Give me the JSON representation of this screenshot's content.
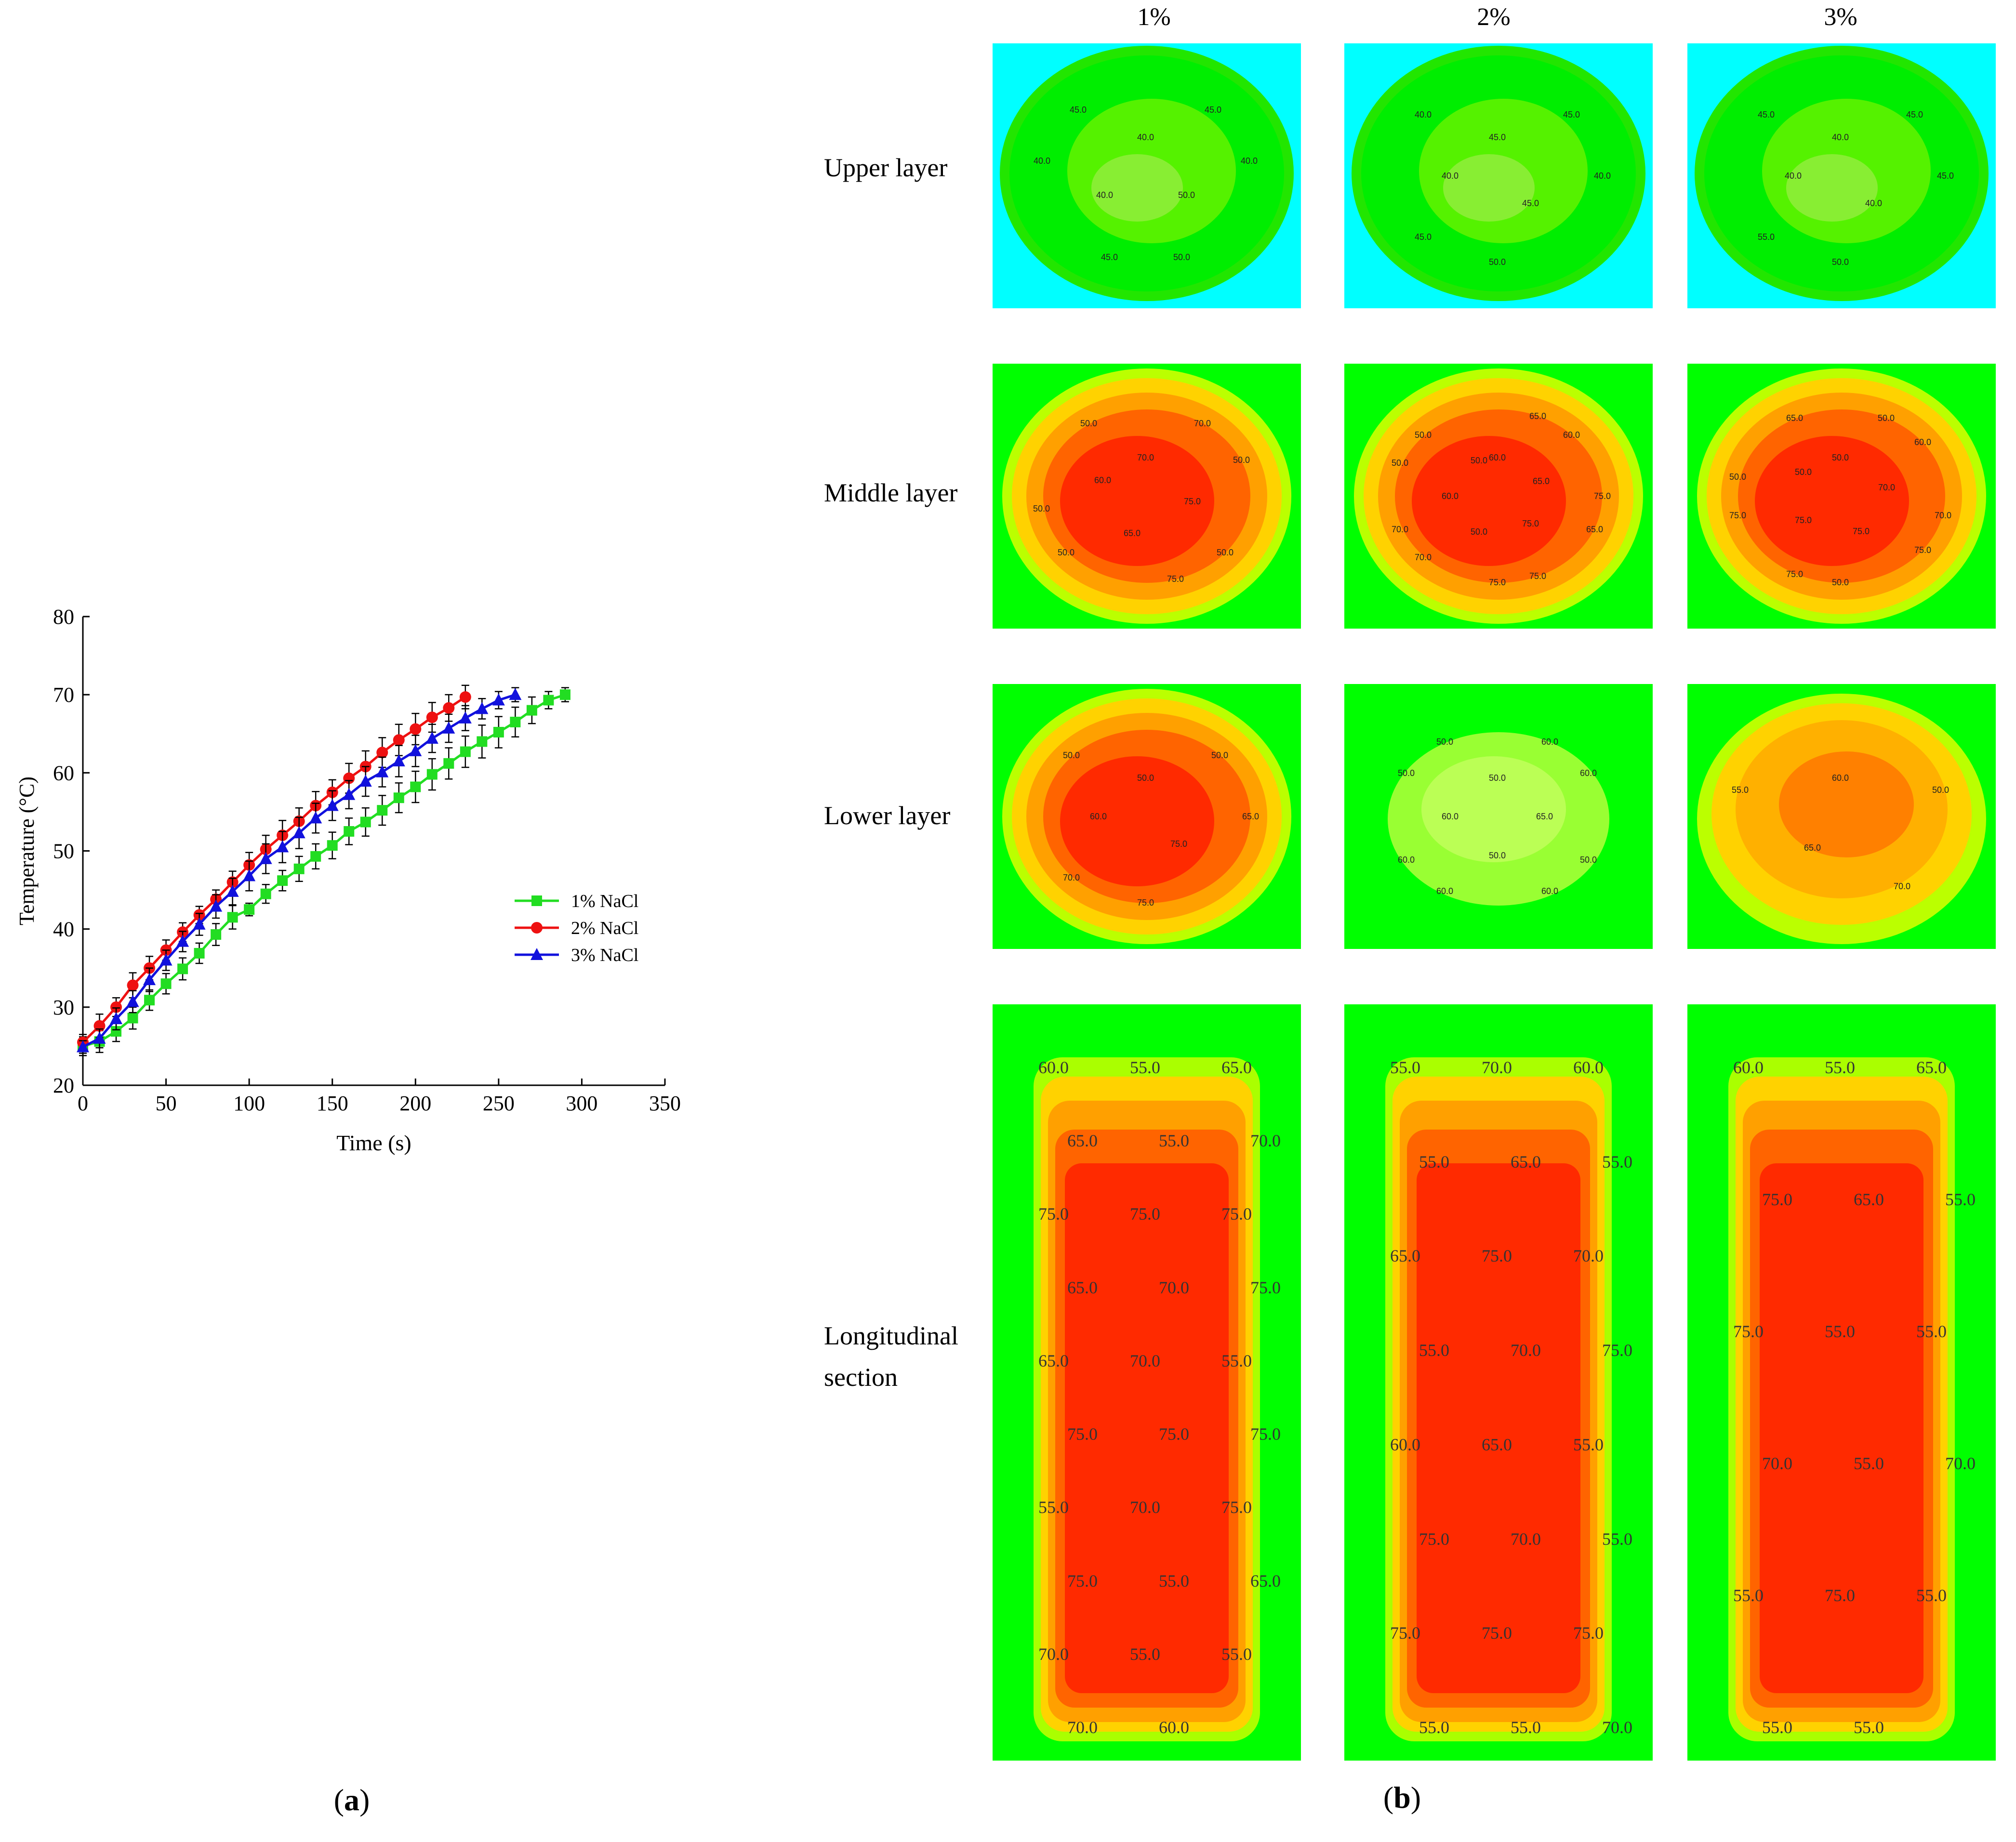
{
  "panel_a": {
    "label": "a"
  },
  "panel_b": {
    "label": "b",
    "columns": [
      "1%",
      "2%",
      "3%"
    ],
    "rows": [
      "Upper layer",
      "Middle layer",
      "Lower layer",
      "Longitudinal",
      "section"
    ],
    "colors": {
      "bg_upper": "#00ffff",
      "bg_other": "#00ff00",
      "hot": "#ff2a00",
      "warm": "#ffd200",
      "mild": "#9cff00"
    },
    "maps": {
      "upper_1": [
        "40.0",
        "45.0",
        "40.0",
        "50.0",
        "50.0",
        "45.0",
        "40.0",
        "40.0",
        "45.0"
      ],
      "upper_2": [
        "45.0",
        "45.0",
        "40.0",
        "45.0",
        "50.0",
        "45.0",
        "40.0",
        "40.0"
      ],
      "upper_3": [
        "40.0",
        "45.0",
        "45.0",
        "40.0",
        "50.0",
        "55.0",
        "40.0",
        "45.0"
      ],
      "middle_1": [
        "70.0",
        "70.0",
        "50.0",
        "75.0",
        "50.0",
        "75.0",
        "65.0",
        "50.0",
        "50.0",
        "60.0",
        "50.0"
      ],
      "middle_2": [
        "60.0",
        "65.0",
        "60.0",
        "65.0",
        "75.0",
        "65.0",
        "75.0",
        "75.0",
        "75.0",
        "50.0",
        "70.0",
        "70.0",
        "60.0",
        "50.0",
        "50.0",
        "50.0"
      ],
      "middle_3": [
        "50.0",
        "50.0",
        "60.0",
        "70.0",
        "70.0",
        "75.0",
        "75.0",
        "50.0",
        "75.0",
        "75.0",
        "75.0",
        "50.0",
        "50.0",
        "65.0"
      ],
      "lower_1": [
        "50.0",
        "50.0",
        "65.0",
        "75.0",
        "75.0",
        "70.0",
        "60.0",
        "50.0"
      ],
      "lower_2": [
        "50.0",
        "60.0",
        "60.0",
        "65.0",
        "50.0",
        "60.0",
        "50.0",
        "60.0",
        "60.0",
        "60.0",
        "50.0",
        "50.0"
      ],
      "lower_3": [
        "60.0",
        "50.0",
        "70.0",
        "65.0",
        "55.0"
      ],
      "long_1": [
        "60.0",
        "55.0",
        "65.0",
        "65.0",
        "55.0",
        "70.0",
        "75.0",
        "75.0",
        "75.0",
        "65.0",
        "70.0",
        "75.0",
        "65.0",
        "70.0",
        "55.0",
        "75.0",
        "75.0",
        "75.0",
        "55.0",
        "70.0",
        "75.0",
        "75.0",
        "55.0",
        "65.0",
        "70.0",
        "55.0",
        "55.0",
        "70.0",
        "60.0"
      ],
      "long_2": [
        "55.0",
        "70.0",
        "60.0",
        "55.0",
        "65.0",
        "55.0",
        "65.0",
        "75.0",
        "70.0",
        "55.0",
        "70.0",
        "75.0",
        "60.0",
        "65.0",
        "55.0",
        "75.0",
        "70.0",
        "55.0",
        "75.0",
        "75.0",
        "75.0",
        "55.0",
        "55.0",
        "70.0"
      ],
      "long_3": [
        "60.0",
        "55.0",
        "65.0",
        "75.0",
        "65.0",
        "55.0",
        "75.0",
        "55.0",
        "55.0",
        "70.0",
        "55.0",
        "70.0",
        "55.0",
        "75.0",
        "55.0",
        "55.0",
        "55.0"
      ]
    }
  },
  "chart_data": {
    "type": "line",
    "title": "",
    "xlabel": "Time (s)",
    "ylabel": "Temperature (°C)",
    "xlim": [
      0,
      350
    ],
    "ylim": [
      20,
      80
    ],
    "xticks": [
      "0",
      "50",
      "100",
      "150",
      "200",
      "250",
      "300",
      "350"
    ],
    "yticks": [
      "20",
      "30",
      "40",
      "50",
      "60",
      "70",
      "80"
    ],
    "legend_position": "right",
    "series": [
      {
        "name": "1% NaCl",
        "color": "#22dd22",
        "marker": "square",
        "x": [
          0,
          10,
          20,
          30,
          40,
          50,
          60,
          70,
          80,
          90,
          100,
          110,
          120,
          130,
          140,
          150,
          160,
          170,
          180,
          190,
          200,
          210,
          220,
          230,
          240,
          250,
          260,
          270,
          280,
          290
        ],
        "y": [
          25,
          25.6,
          26.9,
          28.6,
          30.9,
          33.0,
          34.9,
          36.9,
          39.3,
          41.5,
          42.5,
          44.5,
          46.2,
          47.7,
          49.3,
          50.7,
          52.5,
          53.7,
          55.2,
          56.8,
          58.2,
          59.8,
          61.2,
          62.7,
          64.0,
          65.2,
          66.5,
          68.0,
          69.3,
          70.0
        ],
        "err": [
          1.2,
          1.4,
          1.3,
          1.4,
          1.3,
          1.3,
          1.4,
          1.3,
          1.4,
          1.5,
          0.8,
          1.2,
          1.3,
          1.6,
          1.6,
          1.7,
          1.7,
          1.8,
          1.9,
          1.9,
          2.0,
          2.0,
          2.0,
          2.0,
          2.1,
          2.0,
          1.9,
          1.7,
          1.1,
          0.9
        ]
      },
      {
        "name": "2% NaCl",
        "color": "#ee1111",
        "marker": "circle",
        "x": [
          0,
          10,
          20,
          30,
          40,
          50,
          60,
          70,
          80,
          90,
          100,
          110,
          120,
          130,
          140,
          150,
          160,
          170,
          180,
          190,
          200,
          210,
          220,
          230
        ],
        "y": [
          25.5,
          27.6,
          30.0,
          32.8,
          35.0,
          37.3,
          39.6,
          41.8,
          43.8,
          46.0,
          48.2,
          50.2,
          52.0,
          53.8,
          55.8,
          57.5,
          59.3,
          60.8,
          62.6,
          64.2,
          65.6,
          67.1,
          68.3,
          69.7
        ],
        "err": [
          1.0,
          1.5,
          1.2,
          1.6,
          1.5,
          1.3,
          1.2,
          1.1,
          1.2,
          1.4,
          1.6,
          1.8,
          1.9,
          1.7,
          1.8,
          1.6,
          1.9,
          2.0,
          1.9,
          2.0,
          2.0,
          1.9,
          1.7,
          1.5
        ]
      },
      {
        "name": "3% NaCl",
        "color": "#1111dd",
        "marker": "triangle",
        "x": [
          0,
          10,
          20,
          30,
          40,
          50,
          60,
          70,
          80,
          90,
          100,
          110,
          120,
          130,
          140,
          150,
          160,
          170,
          180,
          190,
          200,
          210,
          220,
          230,
          240,
          250,
          260
        ],
        "y": [
          24.9,
          26.0,
          28.5,
          30.7,
          33.5,
          36.0,
          38.4,
          40.6,
          42.9,
          44.8,
          46.8,
          49.0,
          50.5,
          52.3,
          54.2,
          55.8,
          57.2,
          58.9,
          60.1,
          61.5,
          62.8,
          64.4,
          65.7,
          67.0,
          68.2,
          69.3,
          70.0
        ],
        "err": [
          0.8,
          1.2,
          1.4,
          1.4,
          1.5,
          1.3,
          1.3,
          1.4,
          1.5,
          1.7,
          1.9,
          1.9,
          2.0,
          2.0,
          1.9,
          1.9,
          1.8,
          1.9,
          1.9,
          2.0,
          2.0,
          1.8,
          1.8,
          1.6,
          1.3,
          1.1,
          0.9
        ]
      }
    ]
  }
}
